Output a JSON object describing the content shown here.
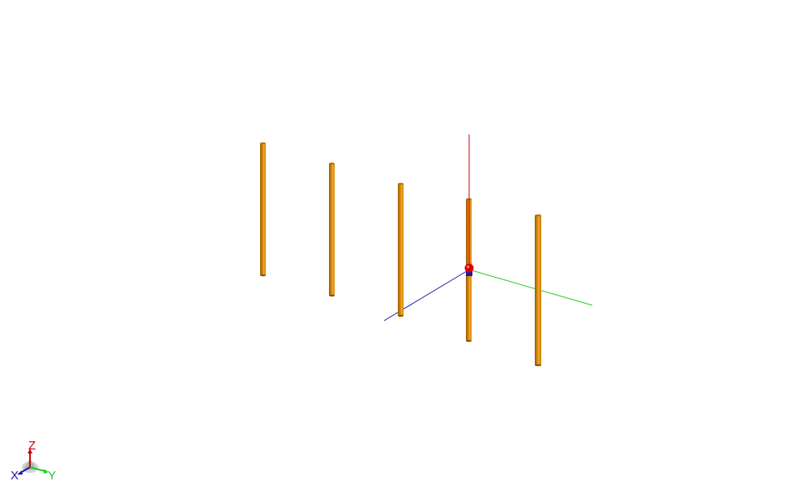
{
  "viewport": {
    "background": "#ffffff",
    "element_color": "#d98a0b",
    "element_shade": "#a8660a",
    "element_highlight": "#f0a830",
    "element_count": 5
  },
  "axes": {
    "x": {
      "label": "X",
      "color": "#0000cc"
    },
    "y": {
      "label": "Y",
      "color": "#00cc00"
    },
    "z": {
      "label": "Z",
      "color": "#cc0000"
    }
  },
  "feed_point": {
    "color": "#dd0000",
    "base_color": "#1a1aa8"
  }
}
